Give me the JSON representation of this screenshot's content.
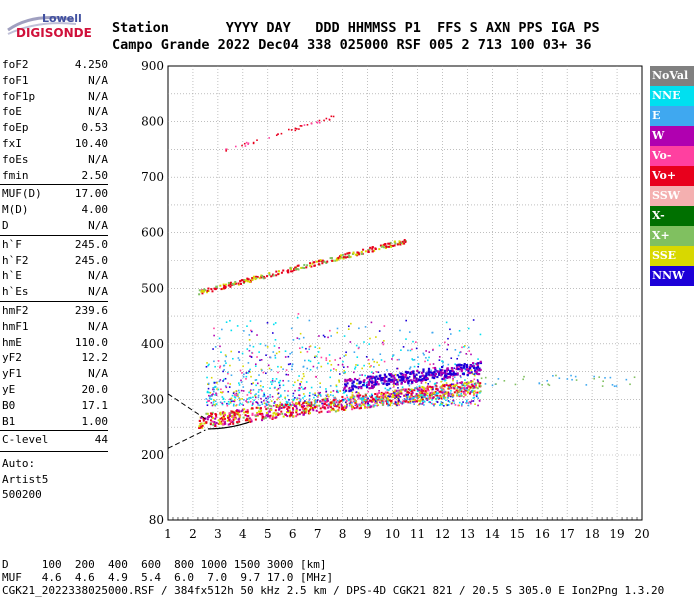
{
  "logo": {
    "line1": "Lowell",
    "line2": "DIGISONDE"
  },
  "header": {
    "line1": "Station       YYYY DAY   DDD HHMMSS P1  FFS S AXN PPS IGA PS",
    "line2": "Campo Grande 2022 Dec04 338 025000 RSF 005 2 713 100 03+ 36"
  },
  "params": [
    {
      "name": "foF2",
      "value": "4.250"
    },
    {
      "name": "foF1",
      "value": "N/A"
    },
    {
      "name": "foF1p",
      "value": "N/A"
    },
    {
      "name": "foE",
      "value": "N/A"
    },
    {
      "name": "foEp",
      "value": "0.53"
    },
    {
      "name": "fxI",
      "value": "10.40"
    },
    {
      "name": "foEs",
      "value": "N/A"
    },
    {
      "name": "fmin",
      "value": "2.50"
    },
    {
      "name": "MUF(D)",
      "value": "17.00"
    },
    {
      "name": "M(D)",
      "value": "4.00"
    },
    {
      "name": "D",
      "value": "N/A"
    },
    {
      "name": "h`F",
      "value": "245.0"
    },
    {
      "name": "h`F2",
      "value": "245.0"
    },
    {
      "name": "h`E",
      "value": "N/A"
    },
    {
      "name": "h`Es",
      "value": "N/A"
    },
    {
      "name": "hmF2",
      "value": "239.6"
    },
    {
      "name": "hmF1",
      "value": "N/A"
    },
    {
      "name": "hmE",
      "value": "110.0"
    },
    {
      "name": "yF2",
      "value": "12.2"
    },
    {
      "name": "yF1",
      "value": "N/A"
    },
    {
      "name": "yE",
      "value": "20.0"
    },
    {
      "name": "B0",
      "value": "17.1"
    },
    {
      "name": "B1",
      "value": "1.00"
    },
    {
      "name": "C-level",
      "value": "44"
    }
  ],
  "auto": {
    "line1": "Auto:",
    "line2": "Artist5",
    "line3": "500200"
  },
  "legend": [
    {
      "label": "NoVal",
      "color": "#808080"
    },
    {
      "label": "NNE",
      "color": "#00e0f0"
    },
    {
      "label": "E",
      "color": "#3fa8f0"
    },
    {
      "label": "W",
      "color": "#b000b0"
    },
    {
      "label": "Vo-",
      "color": "#ff40a0"
    },
    {
      "label": "Vo+",
      "color": "#e8001c"
    },
    {
      "label": "SSW",
      "color": "#f4b0b0"
    },
    {
      "label": "X-",
      "color": "#007000"
    },
    {
      "label": "X+",
      "color": "#80c060"
    },
    {
      "label": "SSE",
      "color": "#d8d800"
    },
    {
      "label": "NNW",
      "color": "#1c00d8"
    }
  ],
  "chart_data": {
    "type": "scatter",
    "x_ticks": [
      "1",
      "2",
      "3",
      "4",
      "5",
      "6",
      "7",
      "8",
      "9",
      "10",
      "11",
      "12",
      "13",
      "14",
      "15",
      "16",
      "17",
      "18",
      "19",
      "20"
    ],
    "y_ticks": [
      "900",
      "800",
      "700",
      "600",
      "500",
      "400",
      "300",
      "200",
      "80"
    ],
    "xlim": [
      1,
      20
    ],
    "ylim": [
      80,
      900
    ],
    "grid": true,
    "legend_position": "right"
  },
  "footer": {
    "line1": "D     100  200  400  600  800 1000 1500 3000 [km]",
    "line2": "MUF   4.6  4.6  4.9  5.4  6.0  7.0  9.7 17.0 [MHz]",
    "line3": "CGK21_2022338025000.RSF / 384fx512h 50 kHz 2.5 km / DPS-4D CGK21 821 / 20.5 S 305.0 E Ion2Png 1.3.20"
  }
}
